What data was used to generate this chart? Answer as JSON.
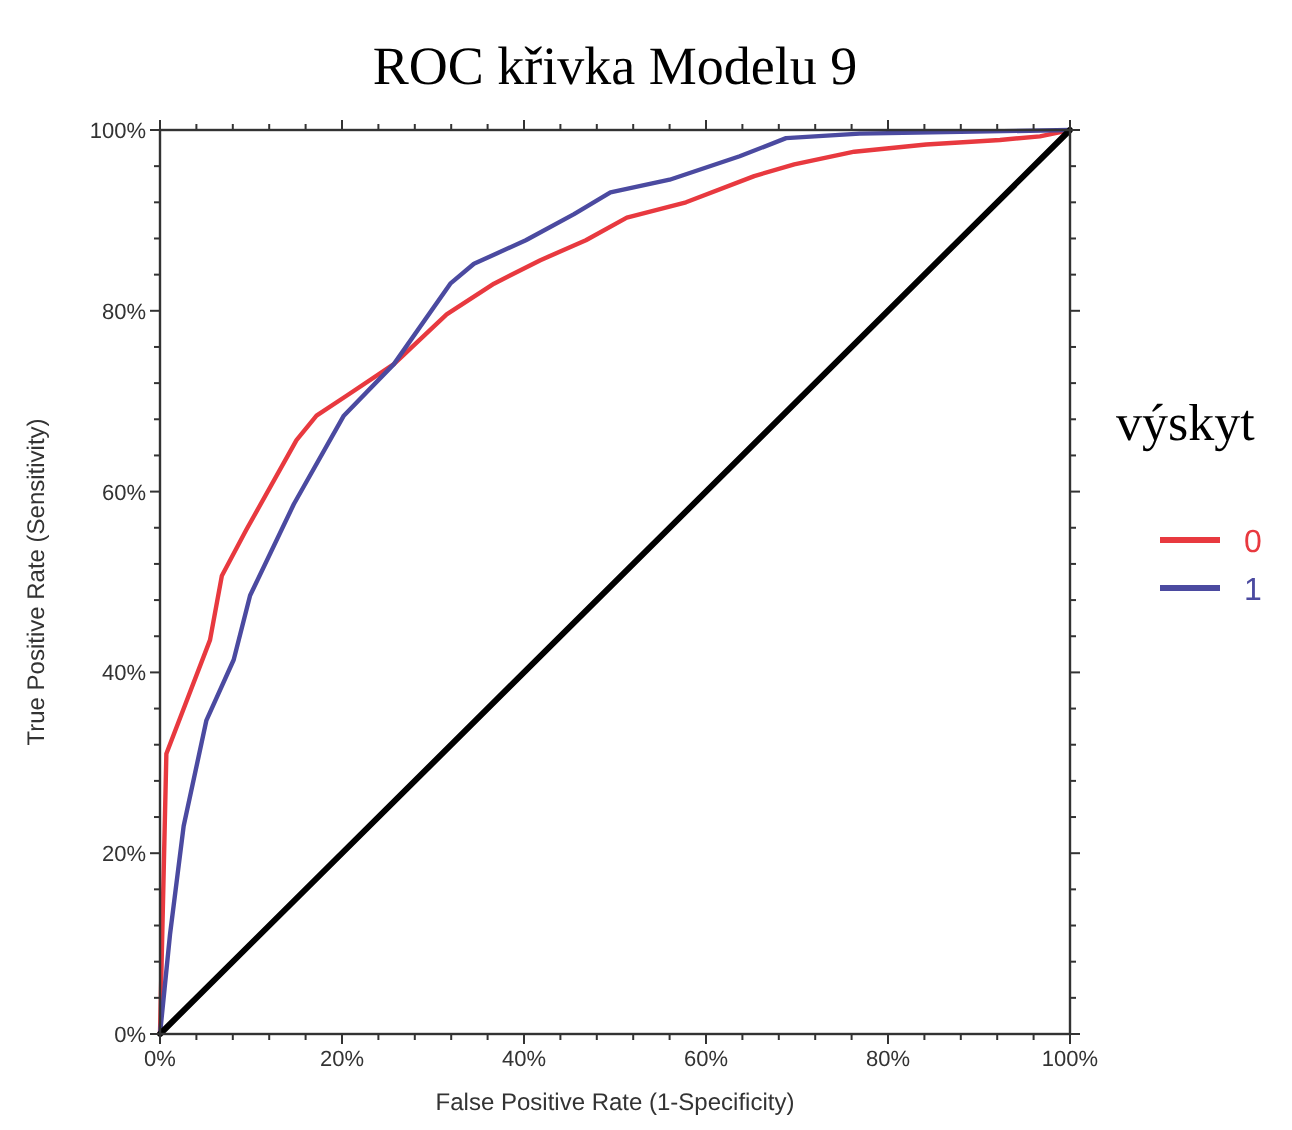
{
  "chart_data": {
    "type": "line",
    "title": "ROC křivka Modelu 9",
    "xlabel": "False Positive Rate (1-Specificity)",
    "ylabel": "True Positive Rate (Sensitivity)",
    "legend_title": "výskyt",
    "legend": "right",
    "grid": false,
    "marker": "none",
    "line_style": "solid",
    "xlim": [
      0,
      100
    ],
    "ylim": [
      0,
      100
    ],
    "xticks": [
      {
        "value": 0,
        "label": "0%"
      },
      {
        "value": 4,
        "label": null
      },
      {
        "value": 8,
        "label": null
      },
      {
        "value": 12,
        "label": null
      },
      {
        "value": 16,
        "label": null
      },
      {
        "value": 20,
        "label": "20%"
      },
      {
        "value": 24,
        "label": null
      },
      {
        "value": 28,
        "label": null
      },
      {
        "value": 32,
        "label": null
      },
      {
        "value": 36,
        "label": null
      },
      {
        "value": 40,
        "label": "40%"
      },
      {
        "value": 44,
        "label": null
      },
      {
        "value": 48,
        "label": null
      },
      {
        "value": 52,
        "label": null
      },
      {
        "value": 56,
        "label": null
      },
      {
        "value": 60,
        "label": "60%"
      },
      {
        "value": 64,
        "label": null
      },
      {
        "value": 68,
        "label": null
      },
      {
        "value": 72,
        "label": null
      },
      {
        "value": 76,
        "label": null
      },
      {
        "value": 80,
        "label": "80%"
      },
      {
        "value": 84,
        "label": null
      },
      {
        "value": 88,
        "label": null
      },
      {
        "value": 92,
        "label": null
      },
      {
        "value": 96,
        "label": null
      },
      {
        "value": 100,
        "label": "100%"
      }
    ],
    "yticks": [
      {
        "value": 0,
        "label": "0%"
      },
      {
        "value": 4,
        "label": null
      },
      {
        "value": 8,
        "label": null
      },
      {
        "value": 12,
        "label": null
      },
      {
        "value": 16,
        "label": null
      },
      {
        "value": 20,
        "label": "20%"
      },
      {
        "value": 24,
        "label": null
      },
      {
        "value": 28,
        "label": null
      },
      {
        "value": 32,
        "label": null
      },
      {
        "value": 36,
        "label": null
      },
      {
        "value": 40,
        "label": "40%"
      },
      {
        "value": 44,
        "label": null
      },
      {
        "value": 48,
        "label": null
      },
      {
        "value": 52,
        "label": null
      },
      {
        "value": 56,
        "label": null
      },
      {
        "value": 60,
        "label": "60%"
      },
      {
        "value": 64,
        "label": null
      },
      {
        "value": 68,
        "label": null
      },
      {
        "value": 72,
        "label": null
      },
      {
        "value": 76,
        "label": null
      },
      {
        "value": 80,
        "label": "80%"
      },
      {
        "value": 84,
        "label": null
      },
      {
        "value": 88,
        "label": null
      },
      {
        "value": 92,
        "label": null
      },
      {
        "value": 96,
        "label": null
      },
      {
        "value": 100,
        "label": "100%"
      }
    ],
    "series": [
      {
        "name": "0",
        "color": "#e8393f",
        "x": [
          0,
          0.7,
          5.5,
          6.8,
          9.5,
          15,
          17.2,
          20.5,
          25.7,
          31.5,
          36.7,
          41.8,
          46.8,
          51.3,
          57.8,
          65.3,
          69.7,
          76.3,
          84.2,
          92.3,
          96.7,
          100
        ],
        "values": [
          0,
          31,
          43.6,
          50.7,
          55.8,
          65.7,
          68.4,
          70.6,
          74.1,
          79.6,
          83,
          85.6,
          87.8,
          90.3,
          92,
          94.9,
          96.2,
          97.6,
          98.4,
          98.9,
          99.3,
          100
        ]
      },
      {
        "name": "1",
        "color": "#4b4aa0",
        "x": [
          0,
          0.5,
          1.1,
          2.6,
          5.1,
          8.1,
          9.9,
          14.7,
          20.2,
          25.7,
          31.9,
          34.5,
          40.2,
          45.5,
          49.5,
          56,
          63.7,
          68.8,
          76.9,
          100
        ],
        "values": [
          0,
          5,
          11,
          23,
          34.7,
          41.4,
          48.5,
          58.6,
          68.4,
          74.1,
          83,
          85.2,
          87.8,
          90.7,
          93.1,
          94.5,
          97.1,
          99.1,
          99.6,
          100
        ]
      },
      {
        "color": "#000000",
        "x": [
          0,
          100
        ],
        "values": [
          0,
          100
        ]
      }
    ]
  }
}
